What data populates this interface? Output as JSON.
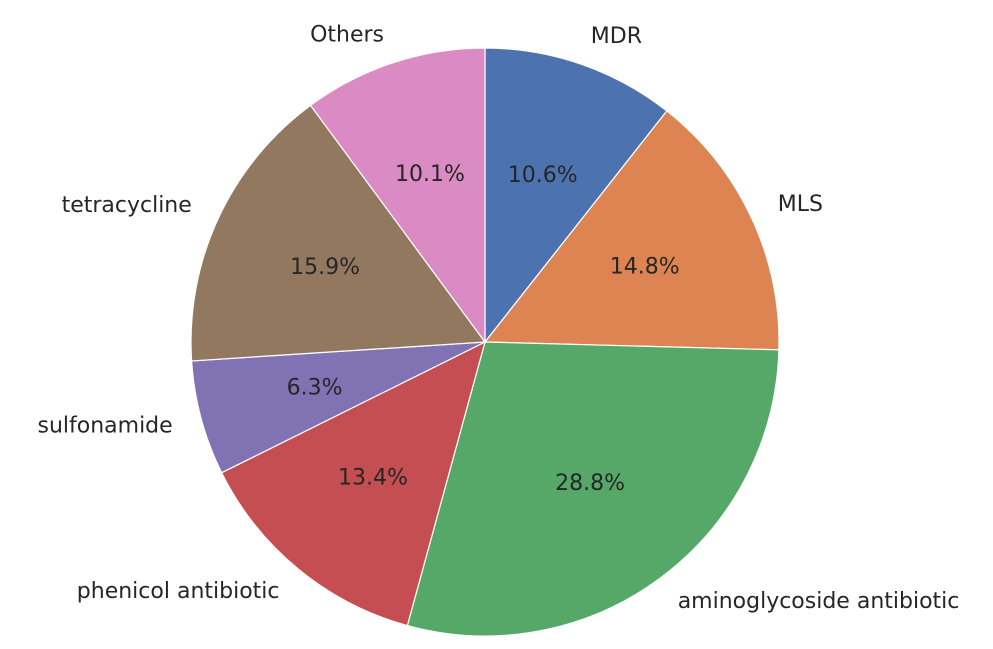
{
  "chart_data": {
    "type": "pie",
    "start_angle_deg": 90,
    "direction": "clockwise",
    "slices": [
      {
        "label": "MDR",
        "value": 10.6,
        "pct_label": "10.6%",
        "color": "#4c72b0"
      },
      {
        "label": "MLS",
        "value": 14.8,
        "pct_label": "14.8%",
        "color": "#dd8452"
      },
      {
        "label": "aminoglycoside antibiotic",
        "value": 28.8,
        "pct_label": "28.8%",
        "color": "#55a868"
      },
      {
        "label": "phenicol antibiotic",
        "value": 13.4,
        "pct_label": "13.4%",
        "color": "#c44e52"
      },
      {
        "label": "sulfonamide",
        "value": 6.3,
        "pct_label": "6.3%",
        "color": "#8172b3"
      },
      {
        "label": "tetracycline",
        "value": 15.9,
        "pct_label": "15.9%",
        "color": "#937860"
      },
      {
        "label": "Others",
        "value": 10.1,
        "pct_label": "10.1%",
        "color": "#da8bc3"
      }
    ]
  }
}
